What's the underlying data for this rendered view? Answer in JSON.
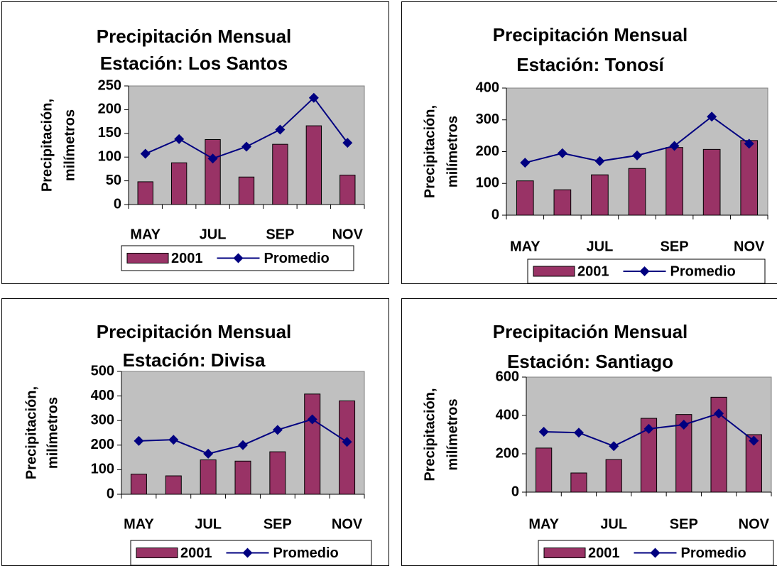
{
  "chart_data": [
    {
      "type": "bar-line",
      "title": "Precipitación Mensual",
      "subtitle": "Estación: Los Santos",
      "ylabel": [
        "Precipitación,",
        "milímetros"
      ],
      "categories": [
        "MAY",
        null,
        "JUL",
        null,
        "SEP",
        null,
        "NOV"
      ],
      "series": [
        {
          "name": "2001",
          "type": "bar",
          "color": "#993366",
          "values": [
            48,
            88,
            137,
            58,
            127,
            166,
            62
          ]
        },
        {
          "name": "Promedio",
          "type": "line",
          "color": "#000080",
          "values": [
            107,
            138,
            97,
            122,
            158,
            225,
            130
          ]
        }
      ],
      "ylim": [
        0,
        250
      ],
      "yticks": [
        0,
        50,
        100,
        150,
        200,
        250
      ],
      "plot_background": "#c0c0c0"
    },
    {
      "type": "bar-line",
      "title": "Precipitación Mensual",
      "subtitle": "Estación: Tonosí",
      "ylabel": [
        "Precipitación,",
        "milímetros"
      ],
      "categories": [
        "MAY",
        null,
        "JUL",
        null,
        "SEP",
        null,
        "NOV"
      ],
      "series": [
        {
          "name": "2001",
          "type": "bar",
          "color": "#993366",
          "values": [
            108,
            80,
            127,
            147,
            213,
            207,
            235
          ]
        },
        {
          "name": "Promedio",
          "type": "line",
          "color": "#000080",
          "values": [
            165,
            195,
            170,
            188,
            218,
            310,
            225
          ]
        }
      ],
      "ylim": [
        0,
        400
      ],
      "yticks": [
        0,
        100,
        200,
        300,
        400
      ],
      "plot_background": "#c0c0c0"
    },
    {
      "type": "bar-line",
      "title": "Precipitación Mensual",
      "subtitle": "Estación: Divisa",
      "ylabel": [
        "Precipitación,",
        "milímetros"
      ],
      "categories": [
        "MAY",
        null,
        "JUL",
        null,
        "SEP",
        null,
        "NOV"
      ],
      "series": [
        {
          "name": "2001",
          "type": "bar",
          "color": "#993366",
          "values": [
            82,
            75,
            140,
            135,
            173,
            408,
            380
          ]
        },
        {
          "name": "Promedio",
          "type": "line",
          "color": "#000080",
          "values": [
            217,
            222,
            165,
            200,
            262,
            305,
            213
          ]
        }
      ],
      "ylim": [
        0,
        500
      ],
      "yticks": [
        0,
        100,
        200,
        300,
        400,
        500
      ],
      "plot_background": "#c0c0c0"
    },
    {
      "type": "bar-line",
      "title": "Precipitación Mensual",
      "subtitle": "Estación: Santiago",
      "ylabel": [
        "Precipitación,",
        "milímetros"
      ],
      "categories": [
        "MAY",
        null,
        "JUL",
        null,
        "SEP",
        null,
        "NOV"
      ],
      "series": [
        {
          "name": "2001",
          "type": "bar",
          "color": "#993366",
          "values": [
            230,
            100,
            170,
            385,
            405,
            495,
            300
          ]
        },
        {
          "name": "Promedio",
          "type": "line",
          "color": "#000080",
          "values": [
            315,
            310,
            240,
            330,
            352,
            410,
            268
          ]
        }
      ],
      "ylim": [
        0,
        600
      ],
      "yticks": [
        0,
        200,
        400,
        600
      ],
      "plot_background": "#c0c0c0"
    }
  ]
}
